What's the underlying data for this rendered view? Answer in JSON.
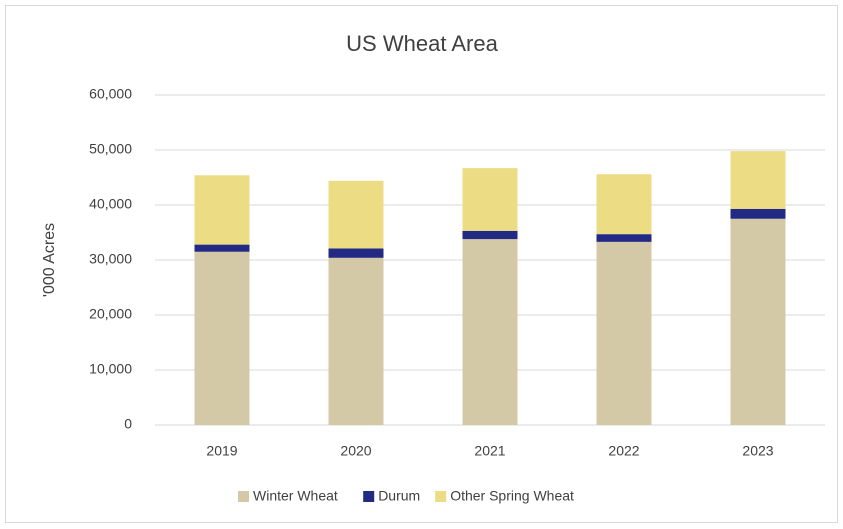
{
  "chart_data": {
    "type": "stacked_bar",
    "title": "US Wheat Area",
    "y_label": "'000 Acres",
    "categories": [
      "2019",
      "2020",
      "2021",
      "2022",
      "2023"
    ],
    "series": [
      {
        "name": "Winter Wheat",
        "color": "#d3c9a7",
        "values": [
          31500,
          30400,
          33800,
          33300,
          37500
        ]
      },
      {
        "name": "Durum",
        "color": "#222a84",
        "values": [
          1300,
          1700,
          1500,
          1400,
          1800
        ]
      },
      {
        "name": "Other Spring Wheat",
        "color": "#ecdc84",
        "values": [
          12600,
          12300,
          11400,
          10900,
          10500
        ]
      }
    ],
    "ylim": [
      0,
      60000
    ],
    "yticks": [
      0,
      {
        "value": 10000,
        "label": "10,000"
      },
      {
        "value": 20000,
        "label": "20,000"
      },
      {
        "value": 30000,
        "label": "30,000"
      },
      {
        "value": 40000,
        "label": "40,000"
      },
      {
        "value": 50000,
        "label": "50,000"
      },
      {
        "value": 60000,
        "label": "60,000"
      }
    ],
    "grid": true,
    "legend": "bottom"
  }
}
